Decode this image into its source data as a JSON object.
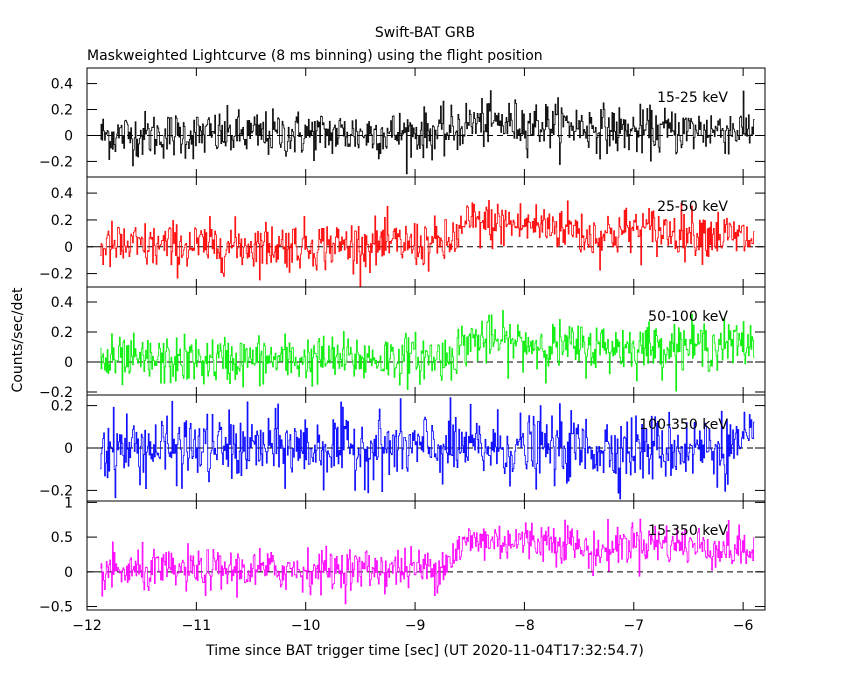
{
  "chart_data": {
    "type": "line",
    "title": "Swift-BAT GRB",
    "subtitle": "Maskweighted Lightcurve (8 ms binning) using the flight position",
    "xlabel": "Time since BAT trigger time [sec] (UT 2020-11-04T17:32:54.7)",
    "ylabel": "Counts/sec/det",
    "xlim": [
      -12.0,
      -5.8
    ],
    "x_ticks": [
      -12,
      -11,
      -10,
      -9,
      -8,
      -7,
      -6
    ],
    "x_tick_labels": [
      "−12",
      "−11",
      "−10",
      "−9",
      "−8",
      "−7",
      "−6"
    ],
    "data_x_range": [
      -11.88,
      -5.9
    ],
    "bin_width_sec": 0.008,
    "grid": false,
    "panels": [
      {
        "name": "15-25 keV",
        "color": "#000000",
        "ylim": [
          -0.32,
          0.52
        ],
        "y_ticks": [
          -0.2,
          0,
          0.2,
          0.4
        ],
        "y_tick_labels": [
          "−0.2",
          "0",
          "0.2",
          "0.4"
        ],
        "noise": 0.09,
        "baseline": [
          [
            -11.9,
            0.0
          ],
          [
            -8.7,
            0.02
          ],
          [
            -8.5,
            0.1
          ],
          [
            -7.6,
            0.08
          ],
          [
            -7.0,
            0.03
          ],
          [
            -5.9,
            0.05
          ]
        ]
      },
      {
        "name": "25-50 keV",
        "color": "#ff0000",
        "ylim": [
          -0.3,
          0.52
        ],
        "y_ticks": [
          -0.2,
          0,
          0.2,
          0.4
        ],
        "y_tick_labels": [
          "−0.2",
          "0",
          "0.2",
          "0.4"
        ],
        "noise": 0.09,
        "baseline": [
          [
            -11.9,
            0.0
          ],
          [
            -8.7,
            0.02
          ],
          [
            -8.5,
            0.18
          ],
          [
            -7.6,
            0.15
          ],
          [
            -7.4,
            0.07
          ],
          [
            -7.0,
            0.13
          ],
          [
            -6.3,
            0.1
          ],
          [
            -5.9,
            0.05
          ]
        ]
      },
      {
        "name": "50-100 keV",
        "color": "#00ee00",
        "ylim": [
          -0.22,
          0.5
        ],
        "y_ticks": [
          -0.2,
          0,
          0.2,
          0.4
        ],
        "y_tick_labels": [
          "−0.2",
          "0",
          "0.2",
          "0.4"
        ],
        "noise": 0.08,
        "baseline": [
          [
            -11.9,
            0.0
          ],
          [
            -8.7,
            0.03
          ],
          [
            -8.5,
            0.15
          ],
          [
            -7.6,
            0.1
          ],
          [
            -7.0,
            0.1
          ],
          [
            -5.9,
            0.12
          ]
        ]
      },
      {
        "name": "100-350 keV",
        "color": "#0000ff",
        "ylim": [
          -0.25,
          0.25
        ],
        "y_ticks": [
          -0.2,
          0,
          0.2
        ],
        "y_tick_labels": [
          "−0.2",
          "0",
          "0.2"
        ],
        "noise": 0.08,
        "baseline": [
          [
            -11.9,
            0.0
          ],
          [
            -5.9,
            0.0
          ]
        ]
      },
      {
        "name": "15-350 keV",
        "color": "#ff00ff",
        "ylim": [
          -0.55,
          1.02
        ],
        "y_ticks": [
          -0.5,
          0,
          0.5,
          1
        ],
        "y_tick_labels": [
          "−0.5",
          "0",
          "0.5",
          "1"
        ],
        "noise": 0.15,
        "baseline": [
          [
            -11.9,
            0.0
          ],
          [
            -8.8,
            0.05
          ],
          [
            -8.5,
            0.45
          ],
          [
            -7.6,
            0.45
          ],
          [
            -7.4,
            0.25
          ],
          [
            -7.0,
            0.45
          ],
          [
            -6.3,
            0.35
          ],
          [
            -5.9,
            0.3
          ]
        ]
      }
    ]
  }
}
